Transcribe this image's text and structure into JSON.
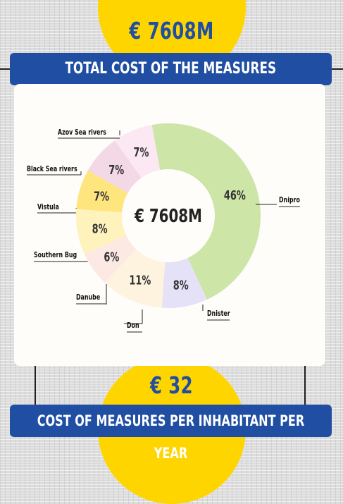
{
  "header": {
    "total_amount": "€ 7608M",
    "title": "TOTAL COST OF THE MEASURES"
  },
  "footer": {
    "per_inhabitant_amount": "€ 32",
    "title": "COST OF MEASURES PER INHABITANT PER YEAR"
  },
  "colors": {
    "brand_blue": "#1f4ea3",
    "accent_yellow": "#ffd500"
  },
  "chart_data": {
    "type": "pie",
    "center_label": "€ 7608M",
    "categories": [
      "Dnipro",
      "Dnister",
      "Don",
      "Danube",
      "Southern Bug",
      "Vistula",
      "Black Sea rivers",
      "Azov Sea rivers"
    ],
    "values": [
      46,
      8,
      11,
      6,
      8,
      7,
      7,
      7
    ],
    "value_labels": [
      "46%",
      "8%",
      "11%",
      "6%",
      "8%",
      "7%",
      "7%",
      "7%"
    ],
    "colors": [
      "#cde5a7",
      "#e5e2f7",
      "#fdf3df",
      "#fde9e4",
      "#fff3bd",
      "#ffe57e",
      "#f3d8e6",
      "#fce8f3"
    ]
  }
}
